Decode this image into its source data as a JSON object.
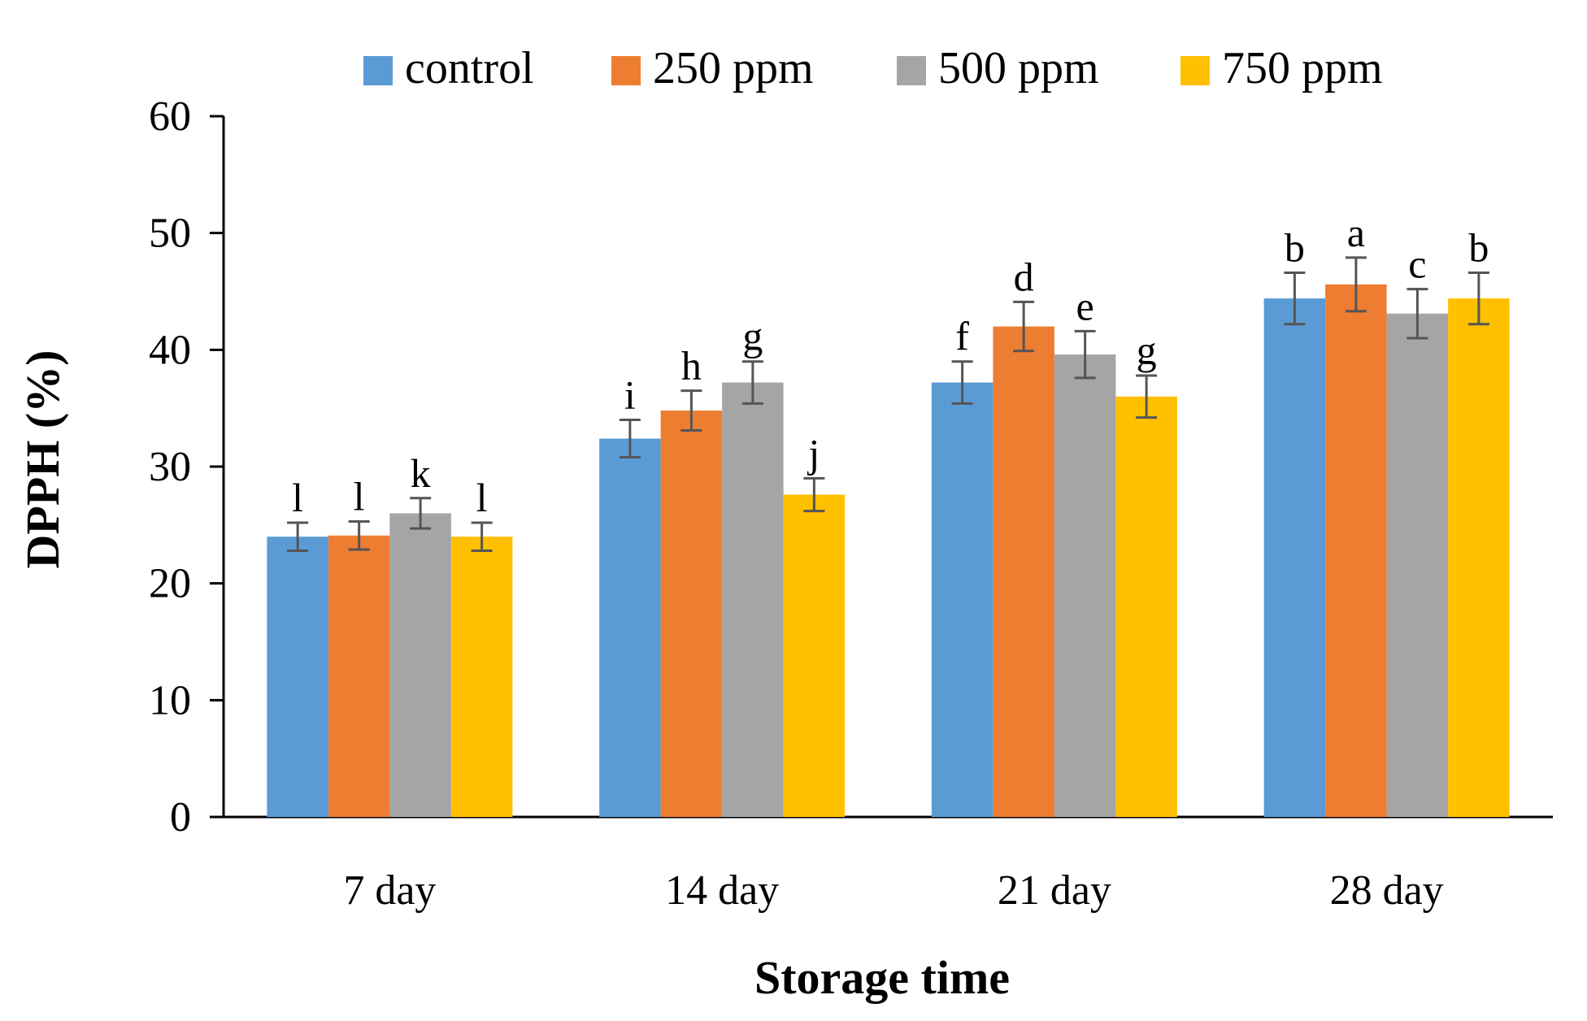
{
  "chart_data": {
    "type": "bar",
    "title": "",
    "xlabel": "Storage time",
    "ylabel": "DPPH (%)",
    "ylim": [
      0,
      60
    ],
    "yticks": [
      0,
      10,
      20,
      30,
      40,
      50,
      60
    ],
    "categories": [
      "7 day",
      "14 day",
      "21 day",
      "28 day"
    ],
    "legend_position": "top",
    "series": [
      {
        "name": "control",
        "color": "#5B9BD5",
        "values": [
          24.0,
          32.4,
          37.2,
          44.4
        ],
        "errors": [
          1.2,
          1.6,
          1.8,
          2.2
        ],
        "labels": [
          "l",
          "i",
          "f",
          "b"
        ]
      },
      {
        "name": "250 ppm",
        "color": "#ED7D31",
        "values": [
          24.1,
          34.8,
          42.0,
          45.6
        ],
        "errors": [
          1.2,
          1.7,
          2.1,
          2.3
        ],
        "labels": [
          "l",
          "h",
          "d",
          "a"
        ]
      },
      {
        "name": "500 ppm",
        "color": "#A5A5A5",
        "values": [
          26.0,
          37.2,
          39.6,
          43.1
        ],
        "errors": [
          1.3,
          1.8,
          2.0,
          2.1
        ],
        "labels": [
          "k",
          "g",
          "e",
          "c"
        ]
      },
      {
        "name": "750 ppm",
        "color": "#FFC000",
        "values": [
          24.0,
          27.6,
          36.0,
          44.4
        ],
        "errors": [
          1.2,
          1.4,
          1.8,
          2.2
        ],
        "labels": [
          "l",
          "j",
          "g",
          "b"
        ]
      }
    ]
  }
}
